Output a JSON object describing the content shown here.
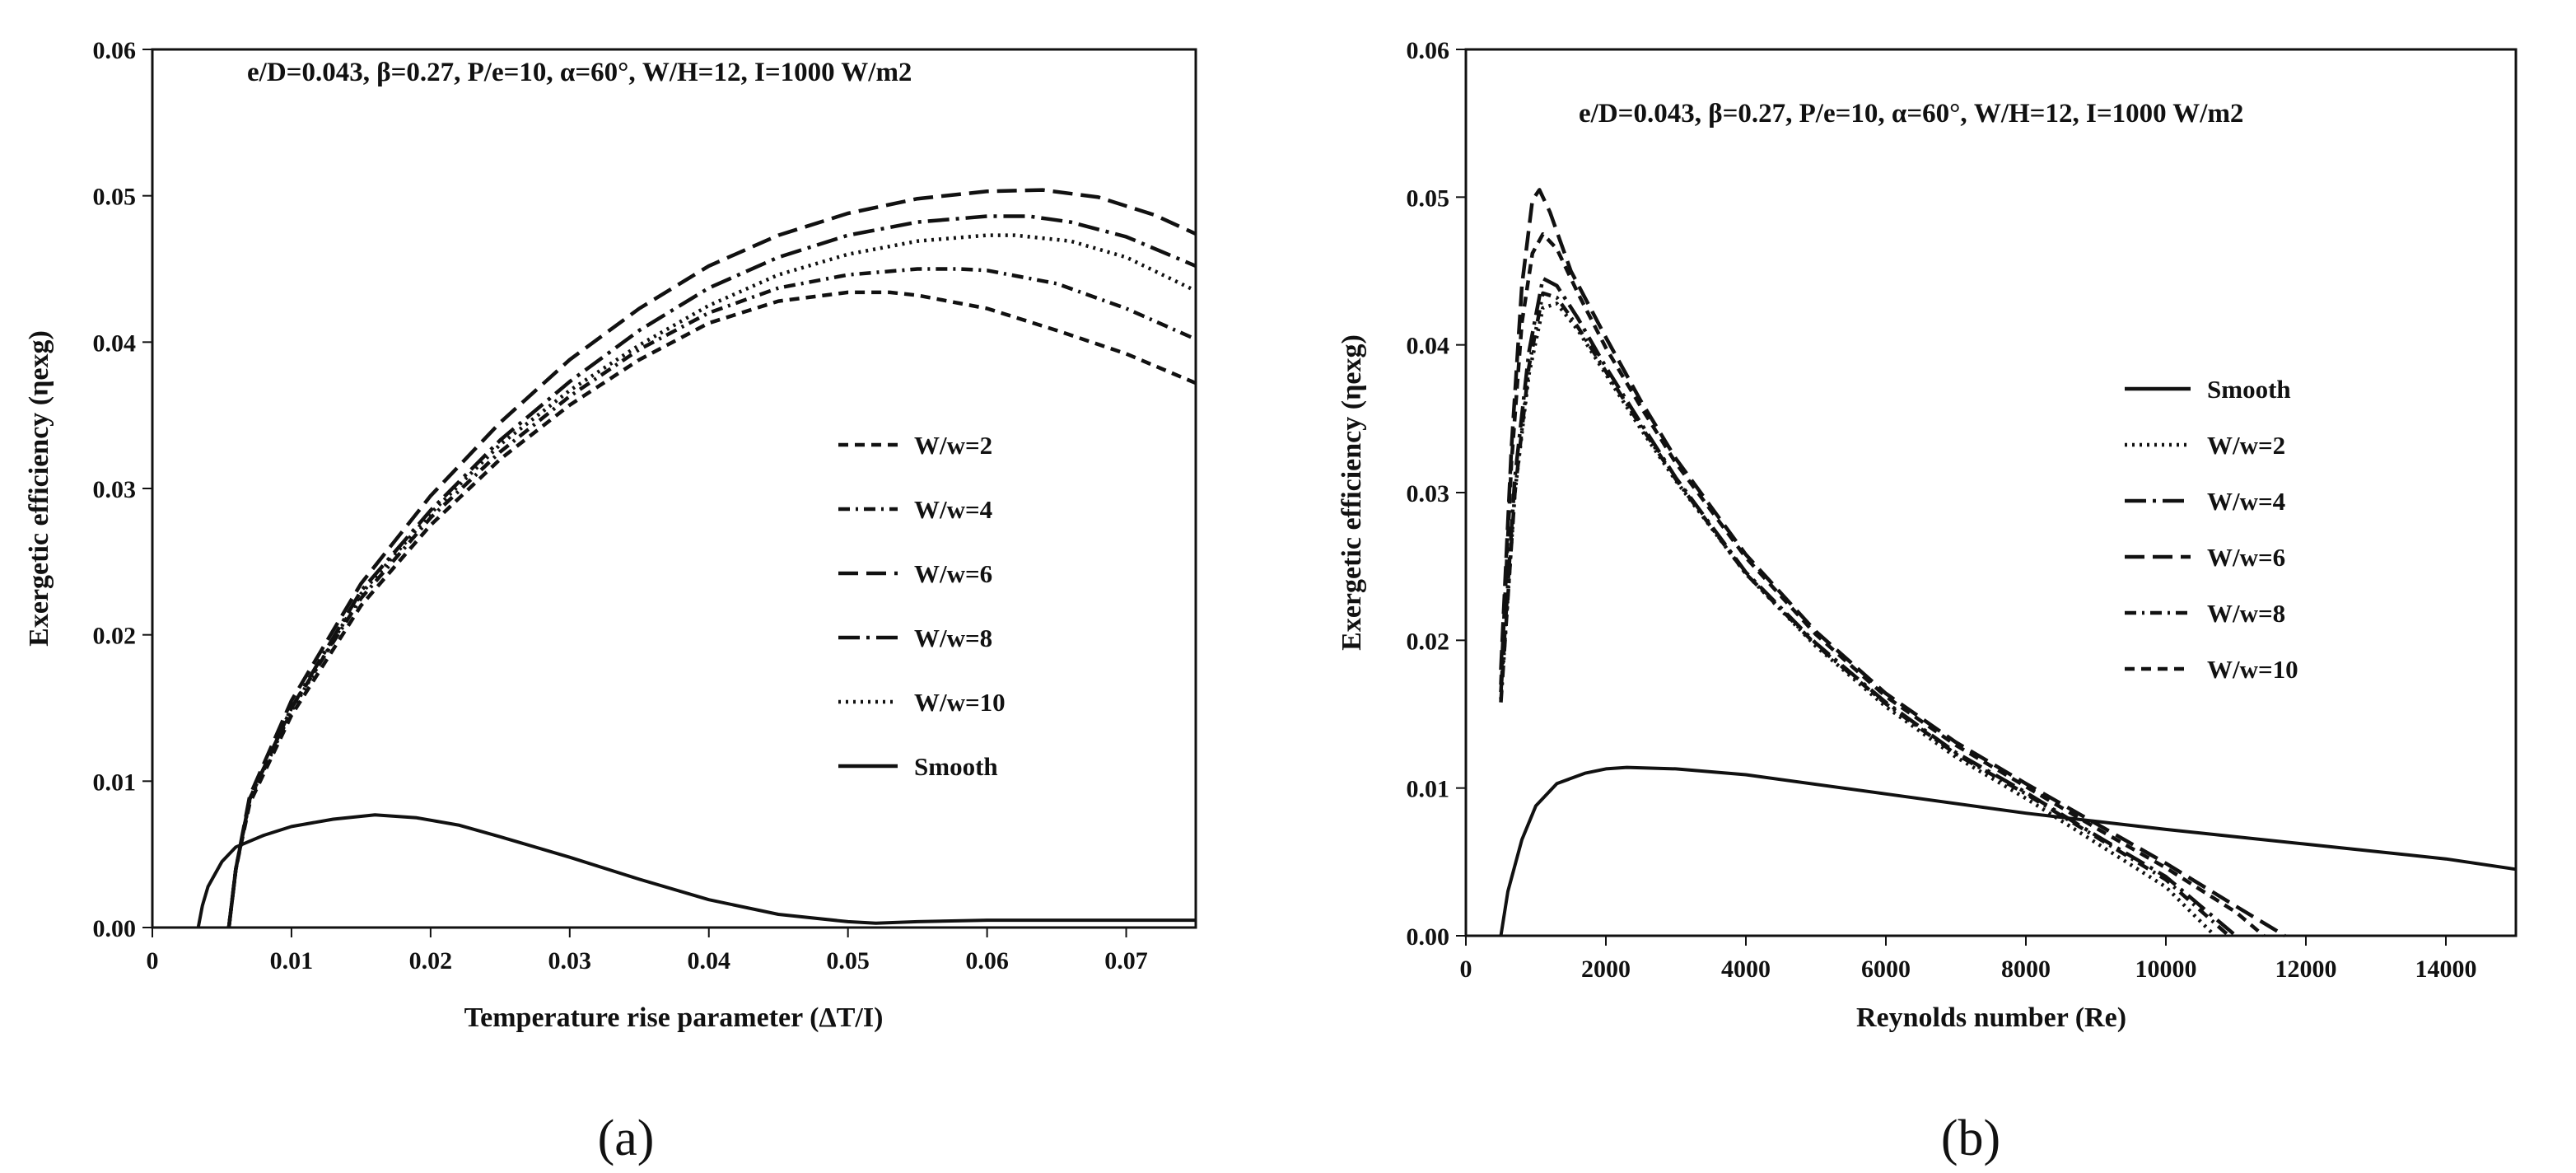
{
  "figure": {
    "panel_a_label": "(a)",
    "panel_b_label": "(b)"
  },
  "chart_data": [
    {
      "type": "line",
      "panel": "a",
      "annotation": "e/D=0.043, β=0.27, P/e=10, α=60°, W/H=12, I=1000 W/m2",
      "xlabel": "Temperature rise parameter (ΔT/I)",
      "ylabel": "Exergetic efficiency (ηexg)",
      "xlim": [
        0,
        0.075
      ],
      "ylim": [
        0,
        0.06
      ],
      "xticks": [
        0,
        0.01,
        0.02,
        0.03,
        0.04,
        0.05,
        0.06,
        0.07
      ],
      "xtick_labels": [
        "0",
        "0.01",
        "0.02",
        "0.03",
        "0.04",
        "0.05",
        "0.06",
        "0.07"
      ],
      "yticks": [
        0,
        0.01,
        0.02,
        0.03,
        0.04,
        0.05,
        0.06
      ],
      "ytick_labels": [
        "0.00",
        "0.01",
        "0.02",
        "0.03",
        "0.04",
        "0.05",
        "0.06"
      ],
      "legend_position": "right",
      "series": [
        {
          "name": "W/w=2",
          "dash": "dash",
          "x": [
            0.0055,
            0.006,
            0.007,
            0.01,
            0.015,
            0.02,
            0.025,
            0.03,
            0.035,
            0.04,
            0.045,
            0.05,
            0.053,
            0.055,
            0.06,
            0.065,
            0.07,
            0.075
          ],
          "y": [
            0.0,
            0.004,
            0.0085,
            0.0145,
            0.022,
            0.0275,
            0.032,
            0.0357,
            0.0388,
            0.0413,
            0.0428,
            0.0434,
            0.0434,
            0.0432,
            0.0423,
            0.0408,
            0.0392,
            0.0372
          ]
        },
        {
          "name": "W/w=4",
          "dash": "dashdot",
          "x": [
            0.0055,
            0.006,
            0.007,
            0.01,
            0.015,
            0.02,
            0.025,
            0.03,
            0.035,
            0.04,
            0.045,
            0.05,
            0.055,
            0.058,
            0.06,
            0.065,
            0.07,
            0.075
          ],
          "y": [
            0.0,
            0.004,
            0.0088,
            0.015,
            0.0225,
            0.028,
            0.0325,
            0.0363,
            0.0395,
            0.042,
            0.0437,
            0.0446,
            0.045,
            0.045,
            0.0449,
            0.044,
            0.0423,
            0.0402
          ]
        },
        {
          "name": "W/w=6",
          "dash": "longdash",
          "x": [
            0.0055,
            0.006,
            0.007,
            0.01,
            0.015,
            0.02,
            0.025,
            0.03,
            0.035,
            0.04,
            0.045,
            0.05,
            0.055,
            0.06,
            0.064,
            0.068,
            0.072,
            0.075
          ],
          "y": [
            0.0,
            0.004,
            0.009,
            0.0155,
            0.0235,
            0.0295,
            0.0345,
            0.0388,
            0.0423,
            0.0452,
            0.0473,
            0.0488,
            0.0498,
            0.0503,
            0.0504,
            0.0499,
            0.0487,
            0.0474
          ]
        },
        {
          "name": "W/w=8",
          "dash": "longdashdot",
          "x": [
            0.0055,
            0.006,
            0.007,
            0.01,
            0.015,
            0.02,
            0.025,
            0.03,
            0.035,
            0.04,
            0.045,
            0.05,
            0.055,
            0.06,
            0.063,
            0.066,
            0.07,
            0.075
          ],
          "y": [
            0.0,
            0.004,
            0.0088,
            0.015,
            0.023,
            0.0285,
            0.0333,
            0.0373,
            0.0408,
            0.0437,
            0.0458,
            0.0473,
            0.0482,
            0.0486,
            0.0486,
            0.0482,
            0.0472,
            0.0452
          ]
        },
        {
          "name": "W/w=10",
          "dash": "dot",
          "x": [
            0.0055,
            0.006,
            0.007,
            0.01,
            0.015,
            0.02,
            0.025,
            0.03,
            0.035,
            0.04,
            0.045,
            0.05,
            0.055,
            0.06,
            0.062,
            0.066,
            0.07,
            0.075
          ],
          "y": [
            0.0,
            0.004,
            0.0087,
            0.0148,
            0.0228,
            0.0283,
            0.033,
            0.0367,
            0.0398,
            0.0425,
            0.0446,
            0.046,
            0.0469,
            0.0473,
            0.0473,
            0.0469,
            0.0458,
            0.0435
          ]
        },
        {
          "name": "Smooth",
          "dash": "solid",
          "x": [
            0.0033,
            0.0036,
            0.004,
            0.005,
            0.006,
            0.008,
            0.01,
            0.013,
            0.016,
            0.019,
            0.022,
            0.025,
            0.03,
            0.035,
            0.04,
            0.045,
            0.05,
            0.052,
            0.055,
            0.06,
            0.065,
            0.07,
            0.075
          ],
          "y": [
            0.0,
            0.0015,
            0.0028,
            0.0045,
            0.0055,
            0.0063,
            0.0069,
            0.0074,
            0.0077,
            0.0075,
            0.007,
            0.0062,
            0.0048,
            0.0033,
            0.0019,
            0.0009,
            0.0004,
            0.0003,
            0.0004,
            0.0005,
            0.0005,
            0.0005,
            0.0005
          ]
        }
      ]
    },
    {
      "type": "line",
      "panel": "b",
      "annotation": "e/D=0.043, β=0.27, P/e=10, α=60°, W/H=12, I=1000 W/m2",
      "xlabel": "Reynolds number (Re)",
      "ylabel": "Exergetic efficiency (ηexg)",
      "xlim": [
        0,
        15000
      ],
      "ylim": [
        0,
        0.06
      ],
      "xticks": [
        0,
        2000,
        4000,
        6000,
        8000,
        10000,
        12000,
        14000
      ],
      "xtick_labels": [
        "0",
        "2000",
        "4000",
        "6000",
        "8000",
        "10000",
        "12000",
        "14000"
      ],
      "yticks": [
        0,
        0.01,
        0.02,
        0.03,
        0.04,
        0.05,
        0.06
      ],
      "ytick_labels": [
        "0.00",
        "0.01",
        "0.02",
        "0.03",
        "0.04",
        "0.05",
        "0.06"
      ],
      "legend_position": "right",
      "series": [
        {
          "name": "Smooth",
          "dash": "solid",
          "x": [
            500,
            600,
            800,
            1000,
            1300,
            1700,
            2000,
            2300,
            3000,
            4000,
            6000,
            8000,
            10000,
            12000,
            14000,
            15000
          ],
          "y": [
            0.0,
            0.003,
            0.0065,
            0.0088,
            0.0103,
            0.011,
            0.0113,
            0.0114,
            0.0113,
            0.0109,
            0.0096,
            0.0083,
            0.0072,
            0.0062,
            0.0052,
            0.0045
          ]
        },
        {
          "name": "W/w=2",
          "dash": "dot",
          "x": [
            500,
            700,
            900,
            1100,
            1300,
            1600,
            2000,
            2500,
            3000,
            4000,
            5000,
            6000,
            7000,
            8000,
            9000,
            10000,
            10700
          ],
          "y": [
            0.016,
            0.03,
            0.038,
            0.0425,
            0.0428,
            0.041,
            0.038,
            0.0343,
            0.0308,
            0.0245,
            0.0196,
            0.0155,
            0.0121,
            0.0093,
            0.0063,
            0.0033,
            0.0
          ]
        },
        {
          "name": "W/w=4",
          "dash": "longdashdot",
          "x": [
            500,
            700,
            900,
            1100,
            1300,
            1600,
            2000,
            2500,
            3000,
            4000,
            5000,
            6000,
            7000,
            8000,
            9000,
            10000,
            11000
          ],
          "y": [
            0.0165,
            0.031,
            0.0395,
            0.0445,
            0.044,
            0.0418,
            0.0385,
            0.0347,
            0.031,
            0.0246,
            0.0198,
            0.0158,
            0.0124,
            0.0097,
            0.0068,
            0.004,
            0.0
          ]
        },
        {
          "name": "W/w=6",
          "dash": "longdash",
          "x": [
            500,
            650,
            800,
            950,
            1050,
            1200,
            1500,
            2000,
            2500,
            3000,
            4000,
            5000,
            6000,
            7000,
            8000,
            9000,
            10000,
            11000,
            11700
          ],
          "y": [
            0.018,
            0.033,
            0.044,
            0.0498,
            0.0505,
            0.049,
            0.045,
            0.0405,
            0.0362,
            0.0323,
            0.0258,
            0.0206,
            0.0164,
            0.0131,
            0.0103,
            0.0076,
            0.0049,
            0.002,
            0.0
          ]
        },
        {
          "name": "W/w=8",
          "dash": "dashdot",
          "x": [
            500,
            700,
            900,
            1100,
            1300,
            1600,
            2000,
            2500,
            3000,
            4000,
            5000,
            6000,
            7000,
            8000,
            9000,
            10000,
            10900
          ],
          "y": [
            0.0158,
            0.03,
            0.0385,
            0.0435,
            0.0432,
            0.0412,
            0.0382,
            0.0345,
            0.0309,
            0.0245,
            0.0197,
            0.0157,
            0.0123,
            0.0096,
            0.0067,
            0.0038,
            0.0
          ]
        },
        {
          "name": "W/w=10",
          "dash": "dash",
          "x": [
            500,
            650,
            800,
            950,
            1100,
            1300,
            1600,
            2000,
            2500,
            3000,
            4000,
            5000,
            6000,
            7000,
            8000,
            9000,
            10000,
            11000,
            11400
          ],
          "y": [
            0.017,
            0.032,
            0.0415,
            0.0462,
            0.0475,
            0.0465,
            0.0435,
            0.0398,
            0.0358,
            0.032,
            0.0256,
            0.0204,
            0.0162,
            0.0129,
            0.0101,
            0.0073,
            0.0046,
            0.0016,
            0.0
          ]
        }
      ]
    }
  ]
}
